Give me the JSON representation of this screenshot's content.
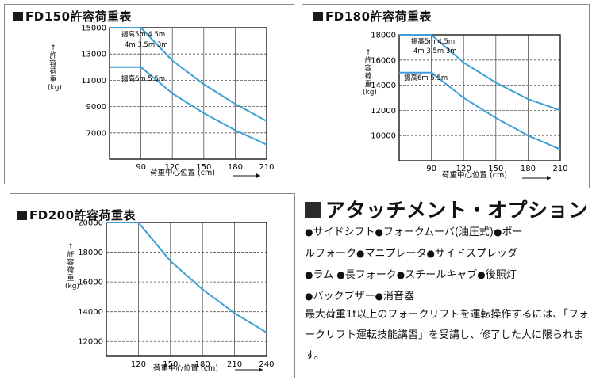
{
  "colors": {
    "curve": "#3f9fd6",
    "frame": "#1a1a1a",
    "grid": "#555555"
  },
  "charts": [
    {
      "title": "FD150許容荷重表",
      "ylabel": "許容荷重",
      "yunit": "(kg)",
      "xlabel": "荷重中心位置 (cm)",
      "labels": [
        "揚高5m 4.5m",
        "4m 3.5m 3m",
        "揚高6m 5.5m"
      ]
    },
    {
      "title": "FD180許容荷重表",
      "ylabel": "許容荷重",
      "yunit": "(kg)",
      "xlabel": "荷重中心位置 (cm)",
      "labels": [
        "揚高5m 4.5m",
        "4m 3.5m 3m",
        "揚高6m 5.5m"
      ]
    },
    {
      "title": "FD200許容荷重表",
      "ylabel": "許容荷重",
      "yunit": "(kg)",
      "xlabel": "荷重中心位置 (cm)",
      "labels": []
    }
  ],
  "chart_data": [
    {
      "type": "line",
      "title": "FD150許容荷重表",
      "xlabel": "荷重中心位置 (cm)",
      "ylabel": "許容荷重 (kg)",
      "xlim": [
        60,
        210
      ],
      "ylim": [
        5000,
        15000
      ],
      "xticks": [
        90,
        120,
        150,
        180,
        210
      ],
      "yticks": [
        7000,
        9000,
        11000,
        13000,
        15000
      ],
      "grid": true,
      "series": [
        {
          "name": "揚高5m 4.5m 4m 3.5m 3m",
          "x": [
            60,
            90,
            120,
            150,
            180,
            210
          ],
          "y": [
            15000,
            15000,
            12500,
            10700,
            9200,
            7900
          ]
        },
        {
          "name": "揚高6m 5.5m",
          "x": [
            60,
            90,
            120,
            150,
            180,
            210
          ],
          "y": [
            12000,
            12000,
            10000,
            8500,
            7200,
            6100
          ]
        }
      ]
    },
    {
      "type": "line",
      "title": "FD180許容荷重表",
      "xlabel": "荷重中心位置 (cm)",
      "ylabel": "許容荷重 (kg)",
      "xlim": [
        60,
        210
      ],
      "ylim": [
        8000,
        18000
      ],
      "xticks": [
        90,
        120,
        150,
        180,
        210
      ],
      "yticks": [
        10000,
        12000,
        14000,
        16000,
        18000
      ],
      "grid": true,
      "series": [
        {
          "name": "揚高5m 4.5m 4m 3.5m 3m",
          "x": [
            60,
            90,
            120,
            150,
            180,
            210
          ],
          "y": [
            18000,
            18000,
            15800,
            14200,
            12900,
            12000
          ]
        },
        {
          "name": "揚高6m 5.5m",
          "x": [
            60,
            90,
            120,
            150,
            180,
            210
          ],
          "y": [
            15000,
            15000,
            13000,
            11400,
            10000,
            8900
          ]
        }
      ]
    },
    {
      "type": "line",
      "title": "FD200許容荷重表",
      "xlabel": "荷重中心位置 (cm)",
      "ylabel": "許容荷重 (kg)",
      "xlim": [
        90,
        240
      ],
      "ylim": [
        11000,
        20000
      ],
      "xticks": [
        120,
        150,
        180,
        210,
        240
      ],
      "yticks": [
        12000,
        14000,
        16000,
        18000,
        20000
      ],
      "grid": true,
      "series": [
        {
          "x": [
            90,
            120,
            150,
            180,
            210,
            240
          ],
          "y": [
            20000,
            20000,
            17400,
            15500,
            13900,
            12600
          ]
        }
      ]
    }
  ],
  "attachments": {
    "title": "アタッチメント・オプション",
    "lines": [
      [
        "サイドシフト",
        "フォークムーバ(油圧式)",
        "ポー"
      ],
      [
        "ルフォーク",
        "マニプレータ",
        "サイドスプレッダ"
      ],
      [
        "ラム",
        "長フォーク",
        "スチールキャブ",
        "後照灯"
      ],
      [
        "バックブザー",
        "消音器"
      ]
    ],
    "note": "最大荷重1t以上のフォークリフトを運転操作するには、「フォークリフト運転技能講習」を受講し、修了した人に限られます。"
  }
}
